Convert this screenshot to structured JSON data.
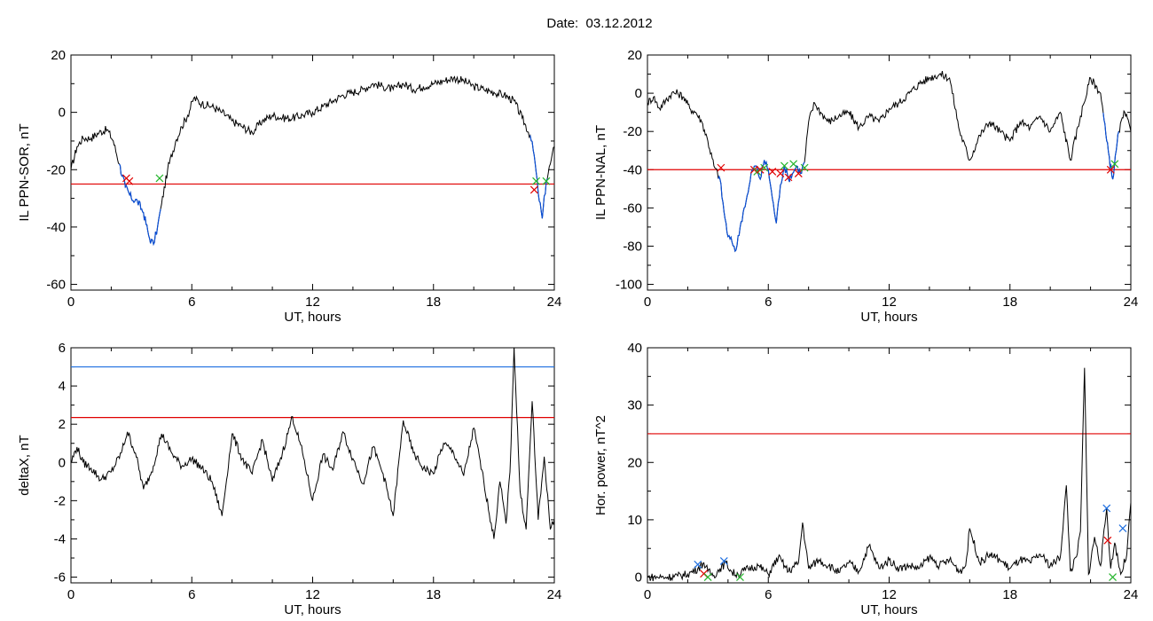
{
  "title": "Date:  03.12.2012",
  "colors": {
    "trace": "#000000",
    "disturbed": "#0a4fd6",
    "threshold_red": "#e00000",
    "threshold_blue": "#1e6fe0",
    "marker_red": "#e00000",
    "marker_green": "#25b52c",
    "marker_blue": "#1e6fe0"
  },
  "chart_data": [
    {
      "id": "il-ppn-sor",
      "type": "line",
      "xlabel": "UT, hours",
      "ylabel": "IL PPN-SOR, nT",
      "xlim": [
        0,
        24
      ],
      "ylim": [
        -62,
        20
      ],
      "xticks": [
        0,
        6,
        12,
        18,
        24
      ],
      "yticks": [
        -60,
        -40,
        -20,
        0,
        20
      ],
      "series": [
        {
          "x": [
            0,
            0.3,
            0.6,
            1.0,
            1.4,
            1.8,
            2.1,
            2.4,
            2.7,
            3.0,
            3.3,
            3.6,
            3.9,
            4.1,
            4.3,
            4.5,
            4.8,
            5.2,
            5.5,
            5.8,
            6.1,
            6.5,
            7.0,
            7.5,
            8.0,
            8.5,
            9.0,
            9.5,
            10.0,
            10.5,
            11.0,
            11.5,
            12.0,
            12.5,
            13.0,
            13.5,
            14.0,
            14.5,
            15.0,
            15.5,
            16.0,
            16.5,
            17.0,
            17.5,
            18.0,
            18.5,
            19.0,
            19.5,
            20.0,
            20.5,
            21.0,
            21.5,
            22.0,
            22.4,
            22.8,
            23.0,
            23.2,
            23.4,
            23.6,
            23.8,
            24.0
          ],
          "y": [
            -20,
            -12,
            -9,
            -9,
            -7,
            -6,
            -10,
            -18,
            -26,
            -30,
            -31,
            -35,
            -44,
            -46,
            -40,
            -32,
            -20,
            -10,
            -5,
            -1,
            5,
            3,
            2,
            0,
            -3,
            -5,
            -7,
            -3,
            -1,
            -2,
            -2,
            -1,
            0,
            2,
            4,
            6,
            7,
            8,
            10,
            9,
            8,
            10,
            8,
            9,
            10,
            11,
            12,
            11,
            9,
            8,
            7,
            6,
            4,
            -2,
            -8,
            -15,
            -28,
            -37,
            -24,
            -18,
            -12
          ]
        }
      ],
      "thresholds": [
        {
          "y": -25,
          "color": "threshold_red"
        }
      ],
      "disturbed": [
        [
          2.4,
          4.45
        ],
        [
          22.8,
          23.7
        ]
      ],
      "markers": [
        {
          "x": 2.75,
          "y": -23,
          "color": "marker_red"
        },
        {
          "x": 2.9,
          "y": -24,
          "color": "marker_red"
        },
        {
          "x": 4.4,
          "y": -23,
          "color": "marker_green"
        },
        {
          "x": 23.0,
          "y": -27,
          "color": "marker_red"
        },
        {
          "x": 23.1,
          "y": -24,
          "color": "marker_green"
        },
        {
          "x": 23.6,
          "y": -24,
          "color": "marker_green"
        }
      ]
    },
    {
      "id": "il-ppn-nal",
      "type": "line",
      "xlabel": "UT, hours",
      "ylabel": "IL PPN-NAL, nT",
      "xlim": [
        0,
        24
      ],
      "ylim": [
        -103,
        20
      ],
      "xticks": [
        0,
        6,
        12,
        18,
        24
      ],
      "yticks": [
        -100,
        -80,
        -60,
        -40,
        -20,
        0,
        20
      ],
      "series": [
        {
          "x": [
            0,
            0.3,
            0.6,
            0.9,
            1.2,
            1.5,
            1.8,
            2.1,
            2.4,
            2.7,
            3.0,
            3.3,
            3.6,
            3.8,
            4.0,
            4.2,
            4.4,
            4.6,
            4.8,
            5.0,
            5.2,
            5.4,
            5.6,
            5.8,
            6.0,
            6.2,
            6.4,
            6.6,
            6.8,
            7.0,
            7.2,
            7.4,
            7.6,
            7.8,
            8.0,
            8.3,
            8.6,
            9.0,
            9.5,
            10.0,
            10.5,
            11.0,
            11.5,
            12.0,
            12.5,
            13.0,
            13.5,
            14.0,
            14.5,
            15.0,
            15.5,
            16.0,
            16.5,
            17.0,
            17.5,
            18.0,
            18.5,
            19.0,
            19.5,
            20.0,
            20.5,
            21.0,
            21.5,
            22.0,
            22.5,
            22.8,
            23.1,
            23.4,
            23.7,
            24.0
          ],
          "y": [
            -5,
            -2,
            -8,
            -4,
            0,
            0,
            -2,
            -8,
            -10,
            -15,
            -25,
            -38,
            -45,
            -62,
            -75,
            -78,
            -82,
            -70,
            -60,
            -52,
            -40,
            -38,
            -45,
            -35,
            -40,
            -55,
            -68,
            -48,
            -38,
            -45,
            -42,
            -38,
            -42,
            -36,
            -15,
            -5,
            -10,
            -15,
            -12,
            -10,
            -18,
            -12,
            -15,
            -8,
            -5,
            0,
            5,
            8,
            10,
            8,
            -20,
            -35,
            -22,
            -15,
            -20,
            -25,
            -15,
            -18,
            -12,
            -20,
            -10,
            -35,
            -12,
            8,
            0,
            -25,
            -45,
            -20,
            -10,
            -20
          ]
        }
      ],
      "thresholds": [
        {
          "y": -40,
          "color": "threshold_red"
        }
      ],
      "disturbed": [
        [
          3.5,
          7.8
        ],
        [
          22.6,
          23.4
        ]
      ],
      "markers": [
        {
          "x": 3.65,
          "y": -39,
          "color": "marker_red"
        },
        {
          "x": 5.3,
          "y": -40,
          "color": "marker_red"
        },
        {
          "x": 5.45,
          "y": -41,
          "color": "marker_green"
        },
        {
          "x": 5.6,
          "y": -40,
          "color": "marker_red"
        },
        {
          "x": 5.8,
          "y": -39,
          "color": "marker_green"
        },
        {
          "x": 6.2,
          "y": -41,
          "color": "marker_red"
        },
        {
          "x": 6.6,
          "y": -42,
          "color": "marker_red"
        },
        {
          "x": 6.8,
          "y": -38,
          "color": "marker_green"
        },
        {
          "x": 7.0,
          "y": -44,
          "color": "marker_red"
        },
        {
          "x": 7.25,
          "y": -37,
          "color": "marker_green"
        },
        {
          "x": 7.5,
          "y": -42,
          "color": "marker_red"
        },
        {
          "x": 7.8,
          "y": -39,
          "color": "marker_green"
        },
        {
          "x": 23.0,
          "y": -40,
          "color": "marker_red"
        },
        {
          "x": 23.2,
          "y": -37,
          "color": "marker_green"
        }
      ]
    },
    {
      "id": "deltax",
      "type": "line",
      "xlabel": "UT, hours",
      "ylabel": "deltaX, nT",
      "xlim": [
        0,
        24
      ],
      "ylim": [
        -6.3,
        6
      ],
      "xticks": [
        0,
        6,
        12,
        18,
        24
      ],
      "yticks": [
        -6,
        -4,
        -2,
        0,
        2,
        4,
        6
      ],
      "series": [
        {
          "x": [
            0,
            0.3,
            0.6,
            1.0,
            1.5,
            2.0,
            2.5,
            2.8,
            3.2,
            3.6,
            4.0,
            4.5,
            5.0,
            5.5,
            6.0,
            6.5,
            7.0,
            7.5,
            8.0,
            8.5,
            9.0,
            9.5,
            10.0,
            10.5,
            11.0,
            11.5,
            12.0,
            12.5,
            13.0,
            13.5,
            14.0,
            14.5,
            15.0,
            15.5,
            16.0,
            16.5,
            17.0,
            17.5,
            18.0,
            18.5,
            19.0,
            19.5,
            20.0,
            20.5,
            21.0,
            21.3,
            21.6,
            21.8,
            22.0,
            22.3,
            22.6,
            22.9,
            23.2,
            23.5,
            23.8,
            24.0
          ],
          "y": [
            0,
            0.8,
            0,
            -0.3,
            -0.9,
            -0.5,
            0.5,
            1.6,
            0.5,
            -1.4,
            -0.5,
            1.5,
            0.5,
            -0.2,
            0.2,
            -0.3,
            -1.0,
            -2.8,
            1.5,
            0.2,
            -0.6,
            1.2,
            -1.0,
            0.5,
            2.4,
            0.5,
            -2.0,
            0.4,
            -0.4,
            1.6,
            0.2,
            -1.1,
            0.8,
            -0.6,
            -2.8,
            2.2,
            0.5,
            -0.3,
            -0.6,
            1.0,
            0.5,
            -0.7,
            1.8,
            -1.0,
            -4.0,
            -1.0,
            -3.2,
            -0.5,
            6.0,
            -1.5,
            -3.5,
            3.2,
            -3.0,
            0.3,
            -3.5,
            -3.0
          ]
        }
      ],
      "thresholds": [
        {
          "y": 5.0,
          "color": "threshold_blue"
        },
        {
          "y": 2.35,
          "color": "threshold_red"
        }
      ],
      "disturbed": [],
      "markers": []
    },
    {
      "id": "hor-power",
      "type": "line",
      "xlabel": "UT, hours",
      "ylabel": "Hor. power, nT^2",
      "xlim": [
        0,
        24
      ],
      "ylim": [
        -1,
        40
      ],
      "xticks": [
        0,
        6,
        12,
        18,
        24
      ],
      "yticks": [
        0,
        10,
        20,
        30,
        40
      ],
      "series": [
        {
          "x": [
            0,
            0.5,
            1.0,
            1.5,
            2.0,
            2.5,
            2.8,
            3.0,
            3.3,
            3.6,
            3.9,
            4.2,
            4.5,
            5.0,
            5.5,
            6.0,
            6.5,
            7.0,
            7.5,
            7.7,
            8.0,
            8.5,
            9.0,
            9.5,
            10.0,
            10.5,
            11.0,
            11.5,
            12.0,
            12.5,
            13.0,
            13.5,
            14.0,
            14.5,
            15.0,
            15.5,
            15.8,
            16.0,
            16.5,
            17.0,
            17.5,
            18.0,
            18.5,
            19.0,
            19.5,
            20.0,
            20.5,
            20.8,
            21.0,
            21.3,
            21.5,
            21.7,
            21.9,
            22.2,
            22.5,
            22.8,
            23.0,
            23.2,
            23.5,
            23.8,
            24.0
          ],
          "y": [
            0,
            0,
            0,
            0.2,
            0.5,
            1.5,
            2.5,
            1.0,
            0.3,
            1.5,
            2.5,
            0.8,
            0.5,
            1.5,
            2.0,
            0.5,
            3.5,
            1.0,
            2.5,
            9.5,
            1.5,
            3.0,
            2.0,
            0.8,
            2.5,
            1.0,
            5.5,
            1.5,
            3.0,
            1.5,
            2.0,
            1.5,
            3.5,
            2.0,
            3.0,
            1.0,
            2.0,
            8.5,
            2.5,
            4.0,
            3.0,
            1.5,
            3.0,
            2.5,
            4.0,
            2.0,
            3.5,
            16.0,
            1.0,
            3.5,
            8.0,
            36.5,
            0.5,
            7.0,
            2.0,
            12.0,
            1.5,
            6.0,
            0.5,
            4.0,
            13.0
          ]
        }
      ],
      "thresholds": [
        {
          "y": 25,
          "color": "threshold_red"
        }
      ],
      "disturbed": [],
      "markers": [
        {
          "x": 2.5,
          "y": 2.2,
          "color": "marker_blue"
        },
        {
          "x": 2.8,
          "y": 0.6,
          "color": "marker_red"
        },
        {
          "x": 3.0,
          "y": 0.0,
          "color": "marker_green"
        },
        {
          "x": 3.8,
          "y": 2.8,
          "color": "marker_blue"
        },
        {
          "x": 4.6,
          "y": 0.0,
          "color": "marker_green"
        },
        {
          "x": 22.8,
          "y": 12.0,
          "color": "marker_blue"
        },
        {
          "x": 22.85,
          "y": 6.4,
          "color": "marker_red"
        },
        {
          "x": 23.1,
          "y": 0.0,
          "color": "marker_green"
        },
        {
          "x": 23.6,
          "y": 8.5,
          "color": "marker_blue"
        }
      ]
    }
  ]
}
